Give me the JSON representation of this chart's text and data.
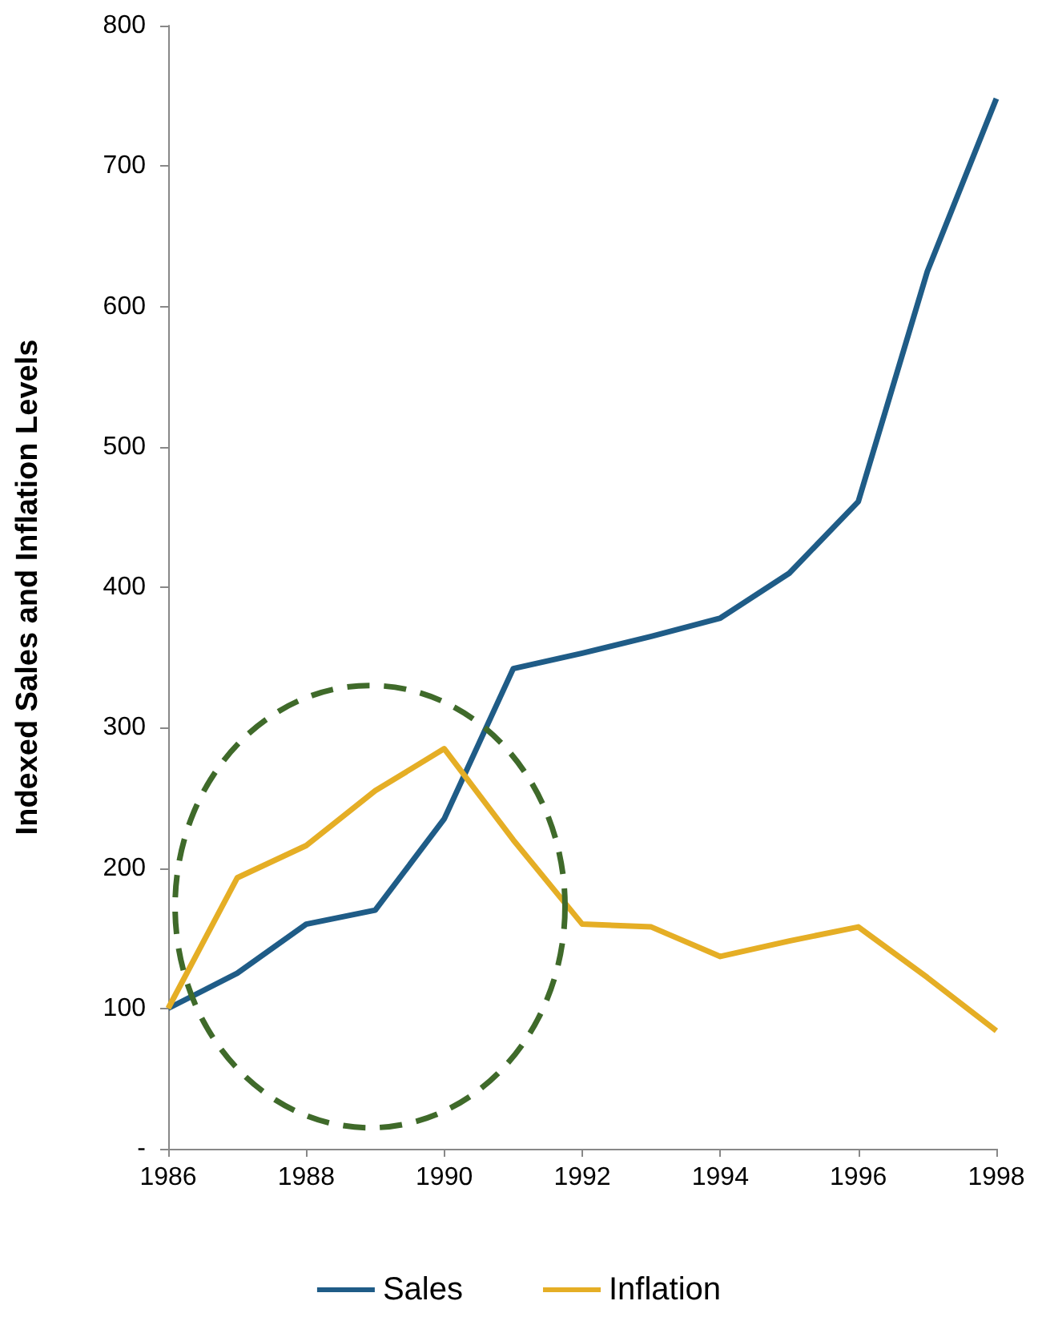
{
  "chart_data": {
    "type": "line",
    "ylabel": "Indexed Sales and Inflation Levels",
    "x": [
      1986,
      1987,
      1988,
      1989,
      1990,
      1991,
      1992,
      1993,
      1994,
      1995,
      1996,
      1997,
      1998
    ],
    "series": [
      {
        "name": "Sales",
        "color": "#1f5c87",
        "values": [
          100,
          125,
          160,
          170,
          235,
          342,
          353,
          365,
          378,
          410,
          461,
          625,
          748
        ]
      },
      {
        "name": "Inflation",
        "color": "#e5ae25",
        "values": [
          100,
          193,
          216,
          255,
          285,
          220,
          160,
          158,
          137,
          148,
          158,
          122,
          84
        ]
      }
    ],
    "xlim": [
      1986,
      1998
    ],
    "xticks": [
      1986,
      1988,
      1990,
      1992,
      1994,
      1996,
      1998
    ],
    "ylim": [
      0,
      800
    ],
    "yticks": [
      {
        "value": 0,
        "label": "-"
      },
      100,
      200,
      300,
      400,
      500,
      600,
      700,
      800
    ],
    "grid": false,
    "legend": "bottom",
    "marker": "none",
    "line_style": "solid"
  }
}
